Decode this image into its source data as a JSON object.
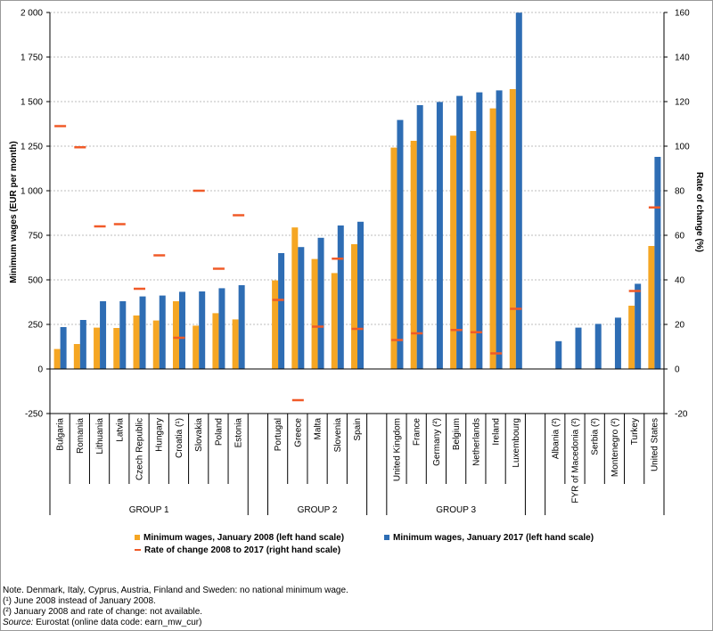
{
  "chart_data": {
    "type": "bar",
    "left_axis_title": "Minimum wages (EUR per month)",
    "right_axis_title": "Rate of change (%)",
    "left_ylim": [
      -250,
      2000
    ],
    "right_ylim": [
      -20,
      160
    ],
    "left_ticks": [
      "2 000",
      "1 750",
      "1 500",
      "1 250",
      "1 000",
      "750",
      "500",
      "250",
      "0",
      "-250"
    ],
    "right_ticks": [
      "160",
      "140",
      "120",
      "100",
      "80",
      "60",
      "40",
      "20",
      "0",
      "-20"
    ],
    "grid": "horizontal",
    "legend_position": "bottom",
    "categories": [
      "Bulgaria",
      "Romania",
      "Lithuania",
      "Latvia",
      "Czech Republic",
      "Hungary",
      "Croatia (¹)",
      "Slovakia",
      "Poland",
      "Estonia",
      "Portugal",
      "Greece",
      "Malta",
      "Slovenia",
      "Spain",
      "United Kingdom",
      "France",
      "Germany (²)",
      "Belgium",
      "Netherlands",
      "Ireland",
      "Luxembourg",
      "Albania (²)",
      "FYR of Macedonia (²)",
      "Serbia (²)",
      "Montenegro (²)",
      "Turkey",
      "United States"
    ],
    "groups": [
      {
        "label": "GROUP 1",
        "size": 10
      },
      {
        "label": "GROUP 2",
        "size": 5
      },
      {
        "label": "GROUP 3",
        "size": 7
      },
      {
        "label": "",
        "size": 6
      }
    ],
    "series": [
      {
        "name": "Minimum wages, January 2008 (left hand scale)",
        "axis": "left",
        "color": "#f5a623",
        "values": [
          112,
          140,
          232,
          230,
          300,
          272,
          380,
          243,
          313,
          278,
          497,
          794,
          617,
          538,
          700,
          1242,
          1280,
          null,
          1309,
          1335,
          1462,
          1570,
          null,
          null,
          null,
          null,
          355,
          690
        ]
      },
      {
        "name": "Minimum wages, January 2017 (left hand scale)",
        "axis": "left",
        "color": "#2e6db4",
        "values": [
          235,
          275,
          380,
          380,
          407,
          412,
          433,
          435,
          453,
          470,
          650,
          684,
          736,
          805,
          826,
          1397,
          1480,
          1498,
          1532,
          1552,
          1563,
          1999,
          156,
          232,
          253,
          288,
          478,
          1190
        ]
      },
      {
        "name": "Rate of change 2008 to 2017 (right hand scale)",
        "axis": "right",
        "color": "#f05a28",
        "values": [
          109,
          99.5,
          64,
          65,
          36,
          51,
          14,
          80,
          45,
          69,
          31,
          -14,
          19,
          49.5,
          18,
          13,
          16,
          null,
          17.5,
          16.5,
          7,
          27,
          null,
          null,
          null,
          null,
          35,
          72.5
        ]
      }
    ]
  },
  "notes": [
    "Note. Denmark, Italy, Cyprus, Austria, Finland and Sweden: no national minimum wage.",
    "(¹) June 2008 instead of January 2008.",
    "(²) January 2008 and rate of change: not available."
  ],
  "source": {
    "label": "Source:",
    "text": " Eurostat (online data code: earn_mw_cur)"
  }
}
